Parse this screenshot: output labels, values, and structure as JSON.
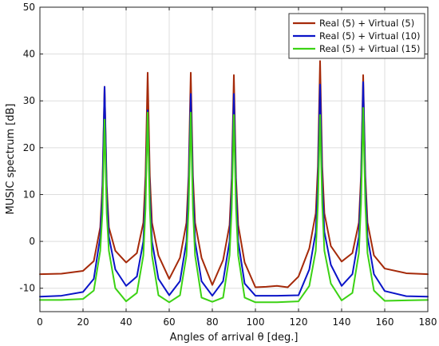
{
  "chart_data": {
    "type": "line",
    "title": "",
    "xlabel": "Angles of arrival θ [deg.]",
    "ylabel": "MUSIC spectrum [dB]",
    "xlim": [
      0,
      180
    ],
    "ylim": [
      -15,
      50
    ],
    "xticks": [
      0,
      20,
      40,
      60,
      80,
      100,
      120,
      140,
      160,
      180
    ],
    "yticks": [
      -10,
      0,
      10,
      20,
      30,
      40,
      50
    ],
    "grid": true,
    "legend_position": "top-right",
    "peak_angles": [
      30,
      50,
      70,
      90,
      130,
      150
    ],
    "series": [
      {
        "name": "Real (5) + Virtual (5)",
        "color": "#a52a0a",
        "peaks": [
          33,
          36,
          36,
          35.5,
          38.5,
          35.5
        ],
        "x": [
          0,
          10,
          20,
          25,
          28,
          29,
          30,
          31,
          32,
          35,
          40,
          45,
          48,
          49,
          50,
          51,
          52,
          55,
          60,
          65,
          68,
          69,
          70,
          71,
          72,
          75,
          80,
          85,
          88,
          89,
          90,
          91,
          92,
          95,
          100,
          105,
          110,
          115,
          120,
          125,
          128,
          129,
          130,
          131,
          132,
          135,
          140,
          145,
          148,
          149,
          150,
          151,
          152,
          155,
          160,
          170,
          180
        ],
        "values": [
          -7,
          -6.9,
          -6.3,
          -4.2,
          3,
          12,
          33,
          12,
          3,
          -2,
          -4.5,
          -2.5,
          4,
          14,
          36,
          14,
          4,
          -3,
          -8,
          -3.5,
          4,
          14,
          36,
          14,
          4,
          -3.5,
          -9.3,
          -4,
          3.5,
          13.5,
          35.5,
          13.5,
          3.5,
          -4.5,
          -9.8,
          -9.7,
          -9.5,
          -9.8,
          -7.5,
          -1.5,
          6,
          16,
          38.5,
          16,
          6,
          -1,
          -4.3,
          -2.5,
          4,
          14,
          35.5,
          14,
          4,
          -3,
          -5.8,
          -6.8,
          -7
        ]
      },
      {
        "name": "Real (5) + Virtual (10)",
        "color": "#0a14c8",
        "peaks": [
          33,
          28,
          31.5,
          31.5,
          33.5,
          34
        ],
        "x": [
          0,
          10,
          20,
          25,
          28,
          29,
          30,
          31,
          32,
          35,
          40,
          45,
          48,
          49,
          50,
          51,
          52,
          55,
          60,
          65,
          68,
          69,
          70,
          71,
          72,
          75,
          80,
          85,
          88,
          89,
          90,
          91,
          92,
          95,
          100,
          110,
          120,
          125,
          128,
          129,
          130,
          131,
          132,
          135,
          140,
          145,
          148,
          149,
          150,
          151,
          152,
          155,
          160,
          170,
          180
        ],
        "values": [
          -11.8,
          -11.6,
          -10.8,
          -8,
          1,
          10,
          33,
          10,
          1,
          -6,
          -9.5,
          -7.5,
          0,
          10,
          28,
          10,
          0,
          -8,
          -11.5,
          -8.5,
          0,
          11,
          31.5,
          11,
          0,
          -8.5,
          -11.6,
          -8.5,
          0,
          11,
          31.5,
          11,
          0,
          -9,
          -11.6,
          -11.6,
          -11.5,
          -6,
          2,
          12,
          33.5,
          12,
          2,
          -5,
          -9.5,
          -7,
          1,
          12,
          34,
          12,
          1,
          -7,
          -10.6,
          -11.7,
          -11.8
        ]
      },
      {
        "name": "Real (5) + Virtual (15)",
        "color": "#3cd214",
        "peaks": [
          26,
          27.5,
          27.5,
          27,
          27,
          28.5
        ],
        "x": [
          0,
          10,
          20,
          25,
          28,
          29,
          30,
          31,
          32,
          35,
          40,
          45,
          48,
          49,
          50,
          51,
          52,
          55,
          60,
          65,
          68,
          69,
          70,
          71,
          72,
          75,
          80,
          85,
          88,
          89,
          90,
          91,
          92,
          95,
          100,
          110,
          120,
          125,
          128,
          129,
          130,
          131,
          132,
          135,
          140,
          145,
          148,
          149,
          150,
          151,
          152,
          155,
          160,
          170,
          180
        ],
        "values": [
          -12.5,
          -12.5,
          -12.3,
          -10.5,
          -2,
          6,
          26,
          6,
          -2,
          -10,
          -12.8,
          -11,
          -3,
          7,
          27.5,
          7,
          -3,
          -11.5,
          -13,
          -11.5,
          -3,
          7,
          27.5,
          7,
          -3,
          -12,
          -12.9,
          -12,
          -3,
          7,
          27,
          7,
          -3,
          -12,
          -13,
          -13,
          -12.8,
          -9.5,
          -2,
          8,
          27,
          8,
          -2,
          -9,
          -12.6,
          -11,
          -2.5,
          8,
          28.5,
          8,
          -2.5,
          -10.5,
          -12.7,
          -12.6,
          -12.5
        ]
      }
    ]
  }
}
